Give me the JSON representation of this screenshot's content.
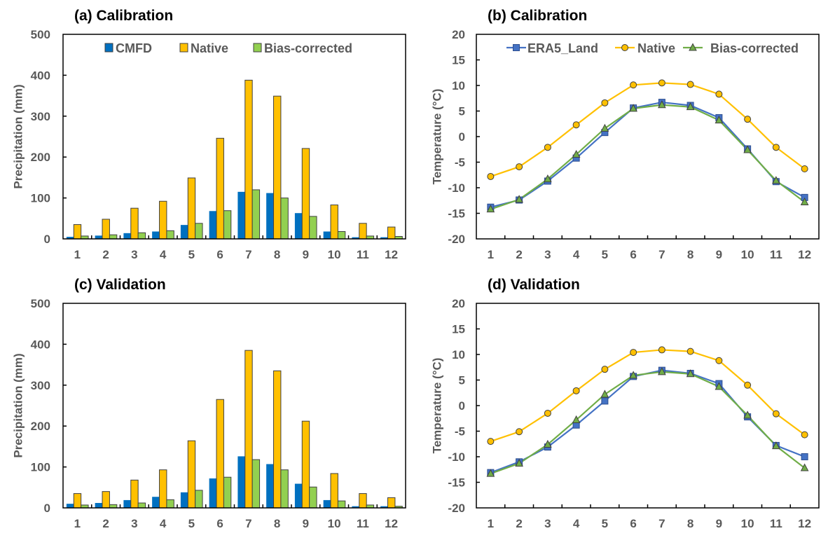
{
  "chart_data": [
    {
      "id": "a",
      "type": "bar",
      "title": "(a) Calibration",
      "xlabel": "",
      "ylabel": "Precipitation (mm)",
      "ylim": [
        0,
        500
      ],
      "yticks": [
        "0",
        "100",
        "200",
        "300",
        "400",
        "500"
      ],
      "ytick_values": [
        0,
        100,
        200,
        300,
        400,
        500
      ],
      "categories": [
        "1",
        "2",
        "3",
        "4",
        "5",
        "6",
        "7",
        "8",
        "9",
        "10",
        "11",
        "12"
      ],
      "legend_position": "top-center",
      "series": [
        {
          "name": "CMFD",
          "color": "#0070C0",
          "values": [
            5,
            8,
            14,
            18,
            34,
            68,
            115,
            112,
            63,
            18,
            4,
            4
          ]
        },
        {
          "name": "Native",
          "color": "#FFC000",
          "values": [
            35,
            48,
            75,
            92,
            149,
            246,
            388,
            349,
            221,
            83,
            38,
            29
          ]
        },
        {
          "name": "Bias-corrected",
          "color": "#92D050",
          "values": [
            7,
            10,
            15,
            20,
            38,
            69,
            120,
            100,
            55,
            18,
            7,
            6
          ]
        }
      ]
    },
    {
      "id": "b",
      "type": "line",
      "title": "(b) Calibration",
      "xlabel": "",
      "ylabel": "Temperature (°C)",
      "ylim": [
        -20,
        20
      ],
      "yticks": [
        "-20",
        "-15",
        "-10",
        "-5",
        "0",
        "5",
        "10",
        "15",
        "20"
      ],
      "ytick_values": [
        -20,
        -15,
        -10,
        -5,
        0,
        5,
        10,
        15,
        20
      ],
      "categories": [
        "1",
        "2",
        "3",
        "4",
        "5",
        "6",
        "7",
        "8",
        "9",
        "10",
        "11",
        "12"
      ],
      "legend_position": "top-right",
      "series": [
        {
          "name": "ERA5_Land",
          "color": "#4472C4",
          "marker": "square",
          "values": [
            -13.8,
            -12.4,
            -8.7,
            -4.2,
            0.8,
            5.6,
            6.7,
            6.1,
            3.7,
            -2.4,
            -8.8,
            -11.9
          ]
        },
        {
          "name": "Native",
          "color": "#FFC000",
          "marker": "circle",
          "values": [
            -7.8,
            -5.9,
            -2.1,
            2.3,
            6.6,
            10.1,
            10.5,
            10.2,
            8.3,
            3.4,
            -2.1,
            -6.3
          ]
        },
        {
          "name": "Bias-corrected",
          "color": "#70AD47",
          "marker": "triangle",
          "values": [
            -14.2,
            -12.3,
            -8.3,
            -3.5,
            1.6,
            5.5,
            6.2,
            5.8,
            3.2,
            -2.6,
            -8.6,
            -12.8
          ]
        }
      ]
    },
    {
      "id": "c",
      "type": "bar",
      "title": "(c) Validation",
      "xlabel": "",
      "ylabel": "Precipitation (mm)",
      "ylim": [
        0,
        500
      ],
      "yticks": [
        "0",
        "100",
        "200",
        "300",
        "400",
        "500"
      ],
      "ytick_values": [
        0,
        100,
        200,
        300,
        400,
        500
      ],
      "categories": [
        "1",
        "2",
        "3",
        "4",
        "5",
        "6",
        "7",
        "8",
        "9",
        "10",
        "11",
        "12"
      ],
      "legend_position": "none",
      "series": [
        {
          "name": "CMFD",
          "color": "#0070C0",
          "values": [
            10,
            12,
            19,
            27,
            38,
            72,
            126,
            107,
            59,
            19,
            4,
            4
          ]
        },
        {
          "name": "Native",
          "color": "#FFC000",
          "values": [
            35,
            40,
            68,
            93,
            164,
            265,
            385,
            335,
            212,
            84,
            35,
            25
          ]
        },
        {
          "name": "Bias-corrected",
          "color": "#92D050",
          "values": [
            7,
            8,
            12,
            20,
            43,
            75,
            118,
            93,
            51,
            17,
            7,
            4
          ]
        }
      ]
    },
    {
      "id": "d",
      "type": "line",
      "title": "(d) Validation",
      "xlabel": "",
      "ylabel": "Temperature (°C)",
      "ylim": [
        -20,
        20
      ],
      "yticks": [
        "-20",
        "-15",
        "-10",
        "-5",
        "0",
        "5",
        "10",
        "15",
        "20"
      ],
      "ytick_values": [
        -20,
        -15,
        -10,
        -5,
        0,
        5,
        10,
        15,
        20
      ],
      "categories": [
        "1",
        "2",
        "3",
        "4",
        "5",
        "6",
        "7",
        "8",
        "9",
        "10",
        "11",
        "12"
      ],
      "legend_position": "none",
      "series": [
        {
          "name": "ERA5_Land",
          "color": "#4472C4",
          "marker": "square",
          "values": [
            -13.1,
            -11.0,
            -8.1,
            -3.8,
            0.9,
            5.7,
            6.9,
            6.3,
            4.3,
            -2.2,
            -7.8,
            -10.0
          ]
        },
        {
          "name": "Native",
          "color": "#FFC000",
          "marker": "circle",
          "values": [
            -7.0,
            -5.1,
            -1.5,
            2.9,
            7.1,
            10.4,
            10.9,
            10.6,
            8.8,
            4.0,
            -1.6,
            -5.7
          ]
        },
        {
          "name": "Bias-corrected",
          "color": "#70AD47",
          "marker": "triangle",
          "values": [
            -13.3,
            -11.3,
            -7.6,
            -2.8,
            2.2,
            5.9,
            6.6,
            6.2,
            3.7,
            -1.9,
            -7.9,
            -12.2
          ]
        }
      ]
    }
  ]
}
